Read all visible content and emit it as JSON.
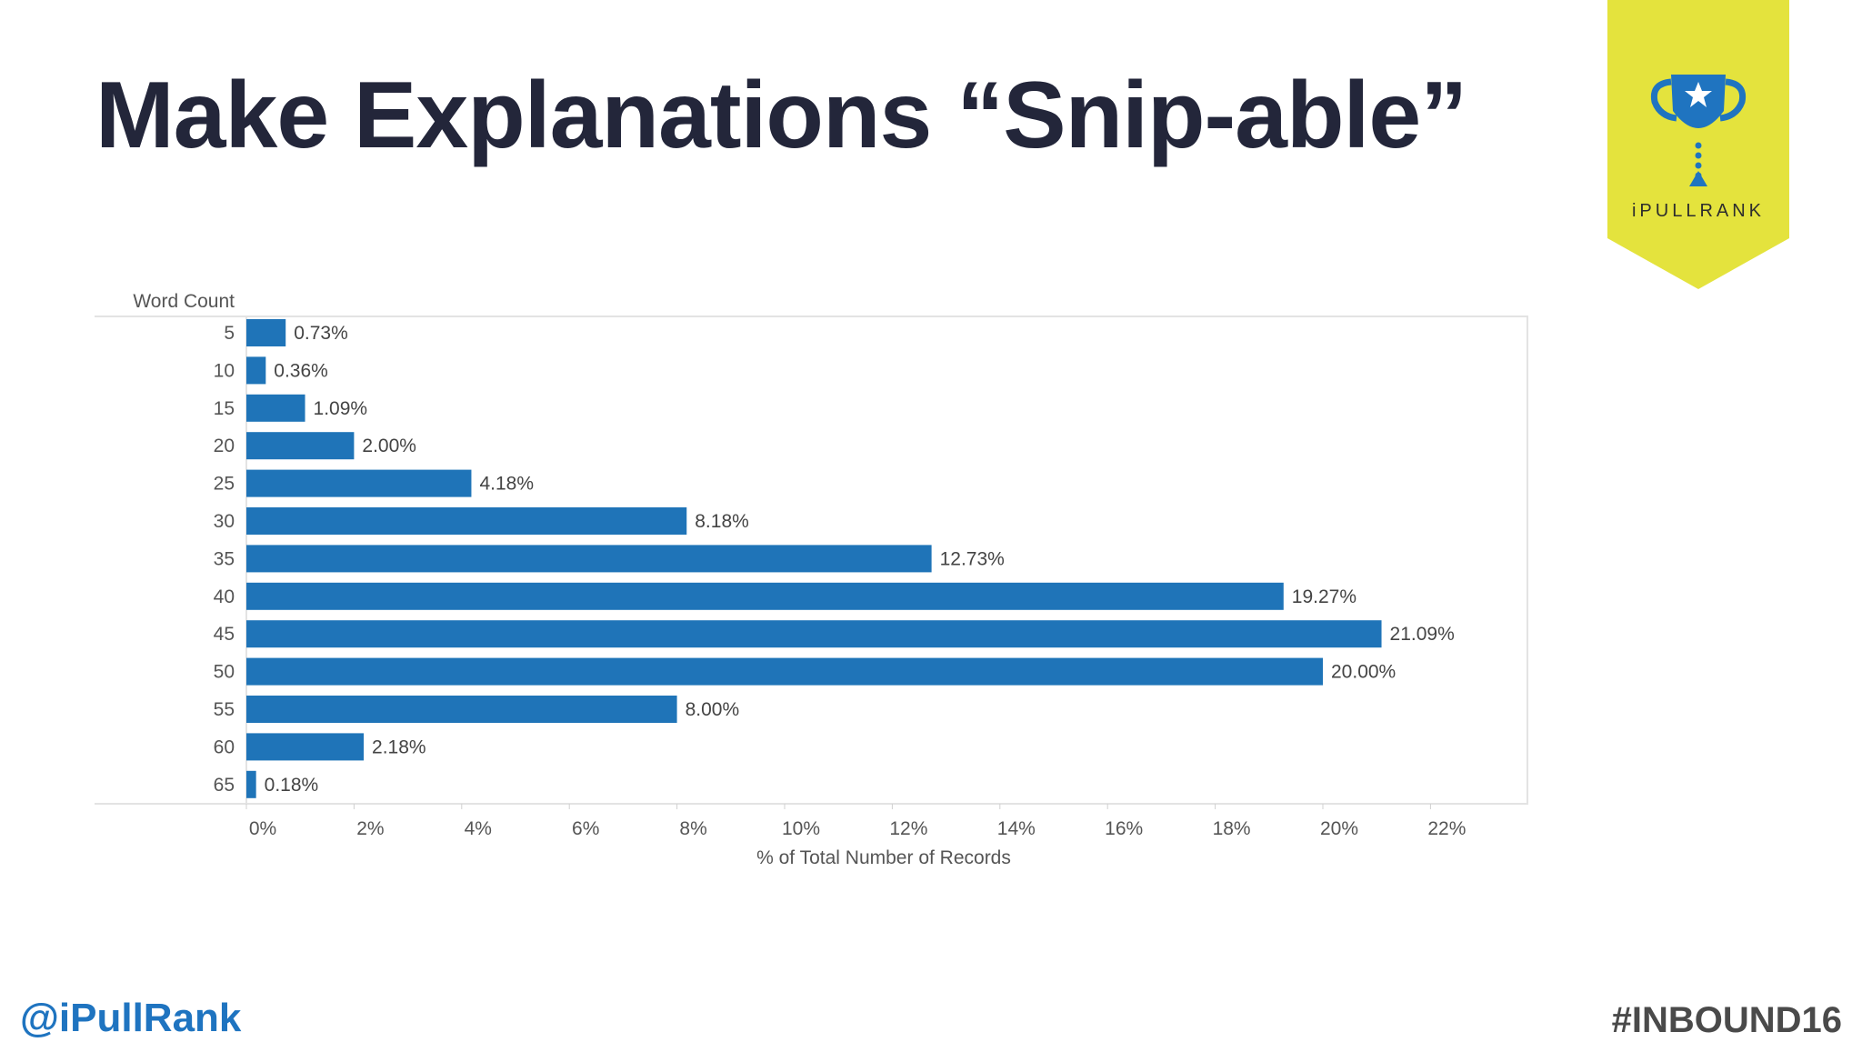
{
  "slide": {
    "title": "Make Explanations “Snip-able”",
    "handle": "@iPullRank",
    "hashtag": "#INBOUND16"
  },
  "logo": {
    "brand_text": "iPULLRANK",
    "icon": "trophy-icon",
    "banner_color": "#e4e33d",
    "trophy_color": "#1f74c0"
  },
  "chart_data": {
    "type": "bar",
    "orientation": "horizontal",
    "category_axis_title": "Word Count",
    "xlabel": "% of Total Number of Records",
    "categories": [
      "5",
      "10",
      "15",
      "20",
      "25",
      "30",
      "35",
      "40",
      "45",
      "50",
      "55",
      "60",
      "65"
    ],
    "values": [
      0.73,
      0.36,
      1.09,
      2.0,
      4.18,
      8.18,
      12.73,
      19.27,
      21.09,
      20.0,
      8.0,
      2.18,
      0.18
    ],
    "data_labels": [
      "0.73%",
      "0.36%",
      "1.09%",
      "2.00%",
      "4.18%",
      "8.18%",
      "12.73%",
      "19.27%",
      "21.09%",
      "20.00%",
      "8.00%",
      "2.18%",
      "0.18%"
    ],
    "xlim": [
      0,
      23
    ],
    "x_ticks": [
      0,
      2,
      4,
      6,
      8,
      10,
      12,
      14,
      16,
      18,
      20,
      22
    ],
    "x_tick_labels": [
      "0%",
      "2%",
      "4%",
      "6%",
      "8%",
      "10%",
      "12%",
      "14%",
      "16%",
      "18%",
      "20%",
      "22%"
    ],
    "bar_color": "#1f74b8",
    "grid": false,
    "legend": "none"
  }
}
